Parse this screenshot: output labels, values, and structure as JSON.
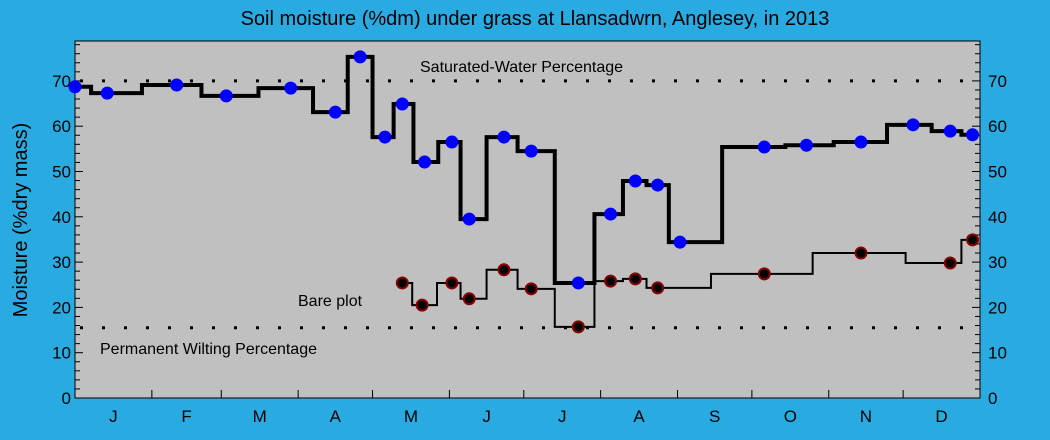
{
  "chart_data": {
    "type": "line",
    "title": "Soil moisture (%dm) under grass at Llansadwrn, Anglesey, in 2013",
    "ylabel": "Moisture (%dry mass)",
    "xlabel": "",
    "year": 2013,
    "ylim": [
      0,
      79
    ],
    "yticks": [
      0,
      10,
      20,
      30,
      40,
      50,
      60,
      70
    ],
    "month_labels": [
      "J",
      "F",
      "M",
      "A",
      "M",
      "J",
      "J",
      "A",
      "S",
      "O",
      "N",
      "D"
    ],
    "grid": false,
    "colors": {
      "background": "#29abe2",
      "plot": "#c0c0c0",
      "grass_marker": "#0000ff",
      "bare_marker": "#000000",
      "bare_marker_edge": "#8b0000"
    },
    "reference_lines": [
      {
        "label": "Saturated-Water Percentage",
        "value": 70
      },
      {
        "label": "Permanent Wilting Percentage",
        "value": 15.5
      }
    ],
    "series": [
      {
        "style": "step-thick",
        "points": [
          [
            "2013-01-01",
            68.7
          ],
          [
            "2013-01-14",
            67.3
          ],
          [
            "2013-02-11",
            69.1
          ],
          [
            "2013-03-03",
            66.7
          ],
          [
            "2013-03-29",
            68.4
          ],
          [
            "2013-04-16",
            63.1
          ],
          [
            "2013-04-26",
            75.3
          ],
          [
            "2013-05-06",
            57.6
          ],
          [
            "2013-05-13",
            64.9
          ],
          [
            "2013-05-22",
            52.1
          ],
          [
            "2013-06-02",
            56.5
          ],
          [
            "2013-06-09",
            39.5
          ],
          [
            "2013-06-23",
            57.6
          ],
          [
            "2013-07-04",
            54.5
          ],
          [
            "2013-07-23",
            25.4
          ],
          [
            "2013-08-05",
            40.6
          ],
          [
            "2013-08-15",
            47.9
          ],
          [
            "2013-08-24",
            47.0
          ],
          [
            "2013-09-02",
            34.4
          ],
          [
            "2013-10-06",
            55.4
          ],
          [
            "2013-10-23",
            55.8
          ],
          [
            "2013-11-14",
            56.5
          ],
          [
            "2013-12-05",
            60.3
          ],
          [
            "2013-12-20",
            58.9
          ],
          [
            "2013-12-29",
            58.1
          ]
        ]
      },
      {
        "name": "Bare plot",
        "style": "step-thin",
        "points": [
          [
            "2013-05-13",
            25.4
          ],
          [
            "2013-05-21",
            20.5
          ],
          [
            "2013-06-02",
            25.4
          ],
          [
            "2013-06-09",
            21.9
          ],
          [
            "2013-06-23",
            28.3
          ],
          [
            "2013-07-04",
            24.1
          ],
          [
            "2013-07-23",
            15.7
          ],
          [
            "2013-08-05",
            25.8
          ],
          [
            "2013-08-15",
            26.3
          ],
          [
            "2013-08-24",
            24.3
          ],
          [
            "2013-10-06",
            27.4
          ],
          [
            "2013-11-14",
            32.0
          ],
          [
            "2013-12-20",
            29.8
          ],
          [
            "2013-12-29",
            34.9
          ]
        ]
      }
    ]
  }
}
